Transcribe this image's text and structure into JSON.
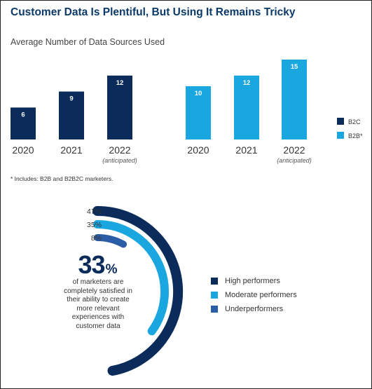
{
  "header": {
    "title": "Customer Data Is Plentiful, But Using It Remains Tricky",
    "subtitle": "Average Number of Data Sources Used"
  },
  "chart_data": [
    {
      "type": "bar",
      "title": "Average Number of Data Sources Used",
      "groups": [
        {
          "series": "B2C",
          "color": "#0b2c5a",
          "categories": [
            "2020",
            "2021",
            "2022"
          ],
          "sublabels": [
            "",
            "",
            "(anticipated)"
          ],
          "values": [
            6,
            9,
            12
          ]
        },
        {
          "series": "B2B*",
          "color": "#1aa7e0",
          "categories": [
            "2020",
            "2021",
            "2022"
          ],
          "sublabels": [
            "",
            "",
            "(anticipated)"
          ],
          "values": [
            10,
            12,
            15
          ]
        }
      ],
      "legend": [
        {
          "label": "B2C",
          "color": "#0b2c5a"
        },
        {
          "label": "B2B*",
          "color": "#1aa7e0"
        }
      ],
      "legend_position": "right",
      "grid": false
    },
    {
      "type": "arc",
      "series": [
        {
          "name": "High performers",
          "value": 47,
          "label": "47%",
          "color": "#0b2c5a"
        },
        {
          "name": "Moderate performers",
          "value": 35,
          "label": "35%",
          "color": "#1aa7e0"
        },
        {
          "name": "Underperformers",
          "value": 8,
          "label": "8%",
          "color": "#2b5ca6"
        }
      ],
      "legend_position": "right"
    }
  ],
  "footnote": "* Includes: B2B and B2B2C marketers.",
  "stat": {
    "value": "33",
    "unit": "%",
    "text": "of marketers are completely satisfied in their ability to create more relevant experiences with customer data"
  }
}
